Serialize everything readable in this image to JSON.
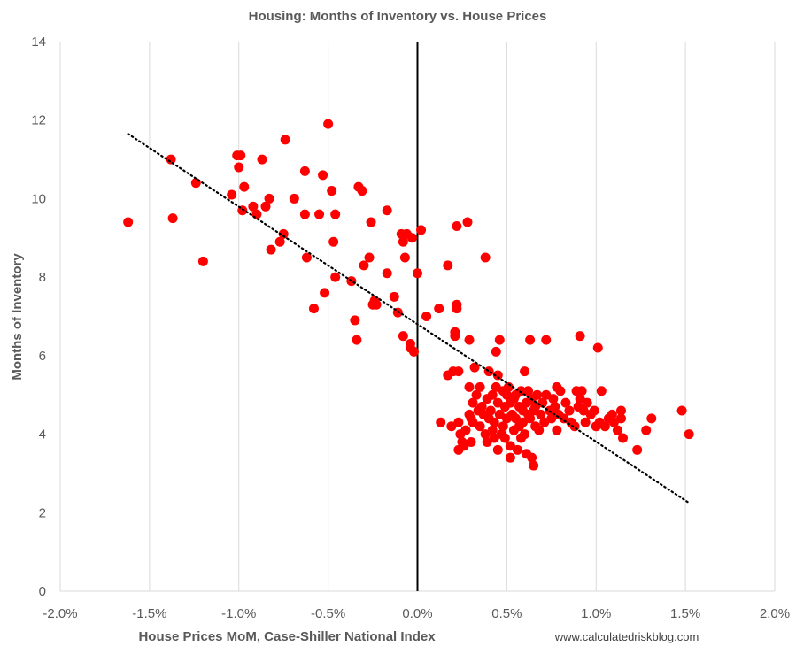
{
  "chart_data": {
    "type": "scatter",
    "title": "Housing: Months of Inventory vs. House Prices",
    "xlabel": "House Prices MoM, Case-Shiller National Index",
    "ylabel": "Months of Inventory",
    "source": "www.calculatedriskblog.com",
    "xlim": [
      -0.02,
      0.02
    ],
    "ylim": [
      0,
      14
    ],
    "x_ticks": [
      -0.02,
      -0.015,
      -0.01,
      -0.005,
      0,
      0.005,
      0.01,
      0.015,
      0.02
    ],
    "x_tick_labels": [
      "-2.0%",
      "-1.5%",
      "-1.0%",
      "-0.5%",
      "0.0%",
      "0.5%",
      "1.0%",
      "1.5%",
      "2.0%"
    ],
    "y_ticks": [
      0,
      2,
      4,
      6,
      8,
      10,
      12,
      14
    ],
    "y_tick_labels": [
      "0",
      "2",
      "4",
      "6",
      "8",
      "10",
      "12",
      "14"
    ],
    "grid": "vertical",
    "zero_line": true,
    "marker_color": "#ff0000",
    "trendline": {
      "style": "dotted",
      "color": "#000000",
      "x": [
        -0.0162,
        0.0152
      ],
      "y": [
        11.65,
        2.25
      ]
    },
    "points": [
      [
        -0.0162,
        9.4
      ],
      [
        -0.0138,
        11.0
      ],
      [
        -0.0137,
        9.5
      ],
      [
        -0.0124,
        10.4
      ],
      [
        -0.012,
        8.4
      ],
      [
        -0.0104,
        10.1
      ],
      [
        -0.0101,
        11.1
      ],
      [
        -0.0099,
        11.1
      ],
      [
        -0.01,
        10.8
      ],
      [
        -0.0098,
        9.7
      ],
      [
        -0.0097,
        10.3
      ],
      [
        -0.0092,
        9.8
      ],
      [
        -0.009,
        9.6
      ],
      [
        -0.0087,
        11.0
      ],
      [
        -0.0085,
        9.8
      ],
      [
        -0.0083,
        10.0
      ],
      [
        -0.0082,
        8.7
      ],
      [
        -0.0077,
        8.9
      ],
      [
        -0.0075,
        9.1
      ],
      [
        -0.0074,
        11.5
      ],
      [
        -0.0069,
        10.0
      ],
      [
        -0.0063,
        10.7
      ],
      [
        -0.0063,
        9.6
      ],
      [
        -0.0062,
        8.5
      ],
      [
        -0.0058,
        7.2
      ],
      [
        -0.0055,
        9.6
      ],
      [
        -0.0053,
        10.6
      ],
      [
        -0.0052,
        7.6
      ],
      [
        -0.005,
        11.9
      ],
      [
        -0.0048,
        10.2
      ],
      [
        -0.0047,
        8.9
      ],
      [
        -0.0046,
        9.6
      ],
      [
        -0.0046,
        8.0
      ],
      [
        -0.0037,
        7.9
      ],
      [
        -0.0035,
        6.9
      ],
      [
        -0.0034,
        6.4
      ],
      [
        -0.0033,
        10.3
      ],
      [
        -0.0031,
        10.2
      ],
      [
        -0.003,
        8.3
      ],
      [
        -0.0027,
        8.5
      ],
      [
        -0.0026,
        9.4
      ],
      [
        -0.0025,
        7.3
      ],
      [
        -0.0024,
        7.4
      ],
      [
        -0.0023,
        7.3
      ],
      [
        -0.0017,
        9.7
      ],
      [
        -0.0017,
        8.1
      ],
      [
        -0.0013,
        7.5
      ],
      [
        -0.0011,
        7.1
      ],
      [
        -0.0009,
        9.1
      ],
      [
        -0.0008,
        6.5
      ],
      [
        -0.0008,
        8.9
      ],
      [
        -0.0007,
        8.5
      ],
      [
        -0.0006,
        9.1
      ],
      [
        -0.0004,
        6.3
      ],
      [
        -0.0004,
        6.2
      ],
      [
        -0.0002,
        6.1
      ],
      [
        -0.0003,
        9.0
      ],
      [
        0.0,
        8.1
      ],
      [
        0.0002,
        9.2
      ],
      [
        0.0005,
        7.0
      ],
      [
        0.0012,
        7.2
      ],
      [
        0.0013,
        4.3
      ],
      [
        0.0017,
        8.3
      ],
      [
        0.0017,
        5.5
      ],
      [
        0.0019,
        4.2
      ],
      [
        0.002,
        5.6
      ],
      [
        0.0021,
        6.5
      ],
      [
        0.0021,
        6.6
      ],
      [
        0.0022,
        9.3
      ],
      [
        0.0022,
        7.3
      ],
      [
        0.0022,
        7.2
      ],
      [
        0.0023,
        5.6
      ],
      [
        0.0023,
        4.3
      ],
      [
        0.0023,
        3.6
      ],
      [
        0.0024,
        4.0
      ],
      [
        0.0025,
        3.8
      ],
      [
        0.0026,
        3.7
      ],
      [
        0.0027,
        4.1
      ],
      [
        0.0028,
        9.4
      ],
      [
        0.0029,
        5.2
      ],
      [
        0.0029,
        4.5
      ],
      [
        0.0029,
        6.4
      ],
      [
        0.003,
        3.8
      ],
      [
        0.003,
        4.4
      ],
      [
        0.0031,
        4.8
      ],
      [
        0.0031,
        4.3
      ],
      [
        0.0032,
        5.7
      ],
      [
        0.0033,
        5.0
      ],
      [
        0.0034,
        4.6
      ],
      [
        0.0035,
        4.2
      ],
      [
        0.0035,
        5.2
      ],
      [
        0.0036,
        4.7
      ],
      [
        0.0037,
        4.5
      ],
      [
        0.0038,
        8.5
      ],
      [
        0.0038,
        4.0
      ],
      [
        0.0039,
        4.9
      ],
      [
        0.0039,
        3.8
      ],
      [
        0.004,
        4.4
      ],
      [
        0.004,
        5.6
      ],
      [
        0.0041,
        4.6
      ],
      [
        0.0042,
        4.1
      ],
      [
        0.0042,
        5.0
      ],
      [
        0.0043,
        4.3
      ],
      [
        0.0043,
        3.9
      ],
      [
        0.0044,
        6.1
      ],
      [
        0.0044,
        5.2
      ],
      [
        0.0045,
        5.5
      ],
      [
        0.0045,
        4.8
      ],
      [
        0.0045,
        3.6
      ],
      [
        0.0046,
        6.4
      ],
      [
        0.0046,
        4.5
      ],
      [
        0.0047,
        4.0
      ],
      [
        0.0048,
        5.1
      ],
      [
        0.0048,
        4.2
      ],
      [
        0.0049,
        4.7
      ],
      [
        0.0049,
        3.9
      ],
      [
        0.005,
        5.0
      ],
      [
        0.005,
        4.4
      ],
      [
        0.0051,
        5.2
      ],
      [
        0.0052,
        3.7
      ],
      [
        0.0052,
        4.8
      ],
      [
        0.0052,
        3.4
      ],
      [
        0.0053,
        4.5
      ],
      [
        0.0054,
        4.9
      ],
      [
        0.0054,
        4.1
      ],
      [
        0.0055,
        5.0
      ],
      [
        0.0055,
        4.4
      ],
      [
        0.0056,
        3.6
      ],
      [
        0.0057,
        4.7
      ],
      [
        0.0057,
        4.2
      ],
      [
        0.0058,
        5.1
      ],
      [
        0.0058,
        3.9
      ],
      [
        0.0059,
        4.6
      ],
      [
        0.0059,
        4.3
      ],
      [
        0.006,
        5.6
      ],
      [
        0.006,
        4.0
      ],
      [
        0.0061,
        4.8
      ],
      [
        0.0061,
        3.5
      ],
      [
        0.0062,
        4.5
      ],
      [
        0.0062,
        5.1
      ],
      [
        0.0063,
        6.4
      ],
      [
        0.0063,
        4.4
      ],
      [
        0.0064,
        4.9
      ],
      [
        0.0064,
        3.4
      ],
      [
        0.0065,
        4.6
      ],
      [
        0.0065,
        3.2
      ],
      [
        0.0066,
        4.2
      ],
      [
        0.0066,
        4.7
      ],
      [
        0.0067,
        5.0
      ],
      [
        0.0068,
        4.1
      ],
      [
        0.0069,
        4.5
      ],
      [
        0.007,
        4.8
      ],
      [
        0.0071,
        4.3
      ],
      [
        0.0072,
        6.4
      ],
      [
        0.0072,
        5.0
      ],
      [
        0.0074,
        4.6
      ],
      [
        0.0075,
        4.4
      ],
      [
        0.0076,
        4.9
      ],
      [
        0.0077,
        4.7
      ],
      [
        0.0078,
        5.2
      ],
      [
        0.0078,
        4.1
      ],
      [
        0.0079,
        4.5
      ],
      [
        0.008,
        5.1
      ],
      [
        0.0082,
        4.4
      ],
      [
        0.0083,
        4.8
      ],
      [
        0.0085,
        4.6
      ],
      [
        0.0086,
        4.3
      ],
      [
        0.0088,
        4.2
      ],
      [
        0.0089,
        5.1
      ],
      [
        0.009,
        4.7
      ],
      [
        0.0091,
        6.5
      ],
      [
        0.0091,
        4.9
      ],
      [
        0.0092,
        5.1
      ],
      [
        0.0093,
        4.6
      ],
      [
        0.0094,
        4.3
      ],
      [
        0.0095,
        4.8
      ],
      [
        0.0097,
        4.5
      ],
      [
        0.0099,
        4.6
      ],
      [
        0.01,
        4.2
      ],
      [
        0.0101,
        6.2
      ],
      [
        0.0102,
        4.3
      ],
      [
        0.0103,
        5.1
      ],
      [
        0.0105,
        4.2
      ],
      [
        0.0107,
        4.4
      ],
      [
        0.0109,
        4.5
      ],
      [
        0.011,
        4.3
      ],
      [
        0.0112,
        4.1
      ],
      [
        0.0114,
        4.4
      ],
      [
        0.0114,
        4.6
      ],
      [
        0.0115,
        3.9
      ],
      [
        0.0123,
        3.6
      ],
      [
        0.0128,
        4.1
      ],
      [
        0.0131,
        4.4
      ],
      [
        0.0148,
        4.6
      ],
      [
        0.0152,
        4.0
      ]
    ]
  }
}
